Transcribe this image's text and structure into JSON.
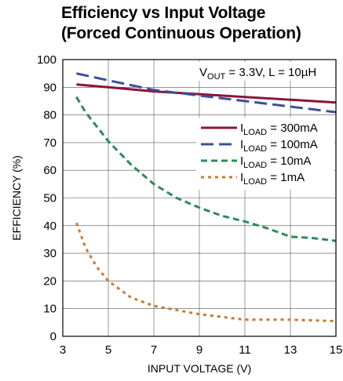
{
  "chart_data": {
    "type": "line",
    "title": "Efficiency vs Input Voltage",
    "subtitle": "(Forced Continuous Operation)",
    "xlabel": "INPUT VOLTAGE (V)",
    "ylabel": "EFFICIENCY (%)",
    "xlim": [
      3,
      15
    ],
    "ylim": [
      0,
      100
    ],
    "xticks": [
      3,
      5,
      7,
      9,
      11,
      13,
      15
    ],
    "yticks": [
      0,
      10,
      20,
      30,
      40,
      50,
      60,
      70,
      80,
      90,
      100
    ],
    "grid": true,
    "legend_position": "right",
    "annotation": {
      "prefix": "V",
      "sub": "OUT",
      "suffix": " = 3.3V, L = 10µH"
    },
    "series": [
      {
        "name_prefix": "I",
        "name_sub": "LOAD",
        "name_suffix": " = 300mA",
        "color": "#8b1538",
        "dash": "solid",
        "x": [
          3.6,
          5,
          7,
          9,
          11,
          13,
          15
        ],
        "y": [
          91,
          90,
          88.5,
          87.5,
          86.5,
          85.5,
          84.5
        ]
      },
      {
        "name_prefix": "I",
        "name_sub": "LOAD",
        "name_suffix": " = 100mA",
        "color": "#3a4f9c",
        "dash": "long",
        "x": [
          3.6,
          5,
          7,
          9,
          11,
          13,
          15
        ],
        "y": [
          95,
          92.5,
          89,
          87,
          85,
          83,
          81
        ]
      },
      {
        "name_prefix": "I",
        "name_sub": "LOAD",
        "name_suffix": " = 10mA",
        "color": "#2e8b57",
        "dash": "medium",
        "x": [
          3.6,
          4,
          5,
          6,
          7,
          8,
          9,
          10,
          11,
          12,
          13,
          14,
          15
        ],
        "y": [
          86.5,
          81,
          70.5,
          62,
          55,
          50,
          46.5,
          43.5,
          41.5,
          39,
          36,
          35.5,
          34.5
        ]
      },
      {
        "name_prefix": "I",
        "name_sub": "LOAD",
        "name_suffix": " = 1mA",
        "color": "#c87a30",
        "dash": "short",
        "x": [
          3.6,
          4,
          4.5,
          5,
          6,
          7,
          8,
          9,
          10,
          11,
          13,
          15
        ],
        "y": [
          41,
          32,
          25,
          20,
          14,
          11,
          9.5,
          8,
          7,
          6,
          6,
          5.5
        ]
      }
    ]
  }
}
